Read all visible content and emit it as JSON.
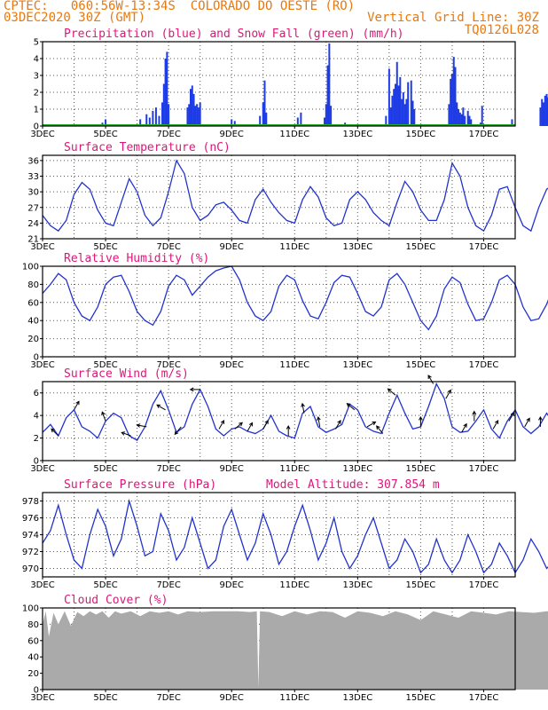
{
  "header": {
    "line1": "CPTEC:   060:56W-13:34S  COLORADO DO OESTE (RO)",
    "line2_left": "03DEC2020 30Z (GMT)",
    "line2_right": "Vertical Grid Line: 30Z",
    "line3_right": "TQ0126L028"
  },
  "chart_data": [
    {
      "type": "bar",
      "title": "Precipitation (blue) and Snow Fall (green) (mm/h)",
      "ylim": [
        0,
        5
      ],
      "yticks": [
        0,
        1,
        2,
        3,
        4,
        5
      ],
      "x_start": "03DEC",
      "x_end": "18DEC",
      "xticks": [
        "3DEC",
        "5DEC",
        "7DEC",
        "9DEC",
        "11DEC",
        "13DEC",
        "15DEC",
        "17DEC"
      ],
      "colors": {
        "precip": "#1e3ce6",
        "snow": "#22aa22"
      },
      "series": [
        {
          "name": "Precipitation",
          "values": [
            [
              1.9,
              0.2
            ],
            [
              2.0,
              0.4
            ],
            [
              3.1,
              0.4
            ],
            [
              3.3,
              0.7
            ],
            [
              3.4,
              0.5
            ],
            [
              3.5,
              0.9
            ],
            [
              3.6,
              1.1
            ],
            [
              3.7,
              0.6
            ],
            [
              3.8,
              1.4
            ],
            [
              3.85,
              2.5
            ],
            [
              3.9,
              4.0
            ],
            [
              3.95,
              4.4
            ],
            [
              4.0,
              1.3
            ],
            [
              4.6,
              1.1
            ],
            [
              4.65,
              1.3
            ],
            [
              4.7,
              2.2
            ],
            [
              4.75,
              2.4
            ],
            [
              4.8,
              1.9
            ],
            [
              4.85,
              1.2
            ],
            [
              4.9,
              1.3
            ],
            [
              4.95,
              1.1
            ],
            [
              5.0,
              1.4
            ],
            [
              6.0,
              0.4
            ],
            [
              6.1,
              0.3
            ],
            [
              6.9,
              0.6
            ],
            [
              7.0,
              1.4
            ],
            [
              7.05,
              2.7
            ],
            [
              7.1,
              0.8
            ],
            [
              8.1,
              0.5
            ],
            [
              8.2,
              0.8
            ],
            [
              8.95,
              0.5
            ],
            [
              9.0,
              1.3
            ],
            [
              9.05,
              3.6
            ],
            [
              9.1,
              4.9
            ],
            [
              9.15,
              1.2
            ],
            [
              9.6,
              0.2
            ],
            [
              10.9,
              0.6
            ],
            [
              11.0,
              3.4
            ],
            [
              11.05,
              1.1
            ],
            [
              11.1,
              1.8
            ],
            [
              11.15,
              2.2
            ],
            [
              11.2,
              2.5
            ],
            [
              11.25,
              3.8
            ],
            [
              11.3,
              2.4
            ],
            [
              11.35,
              2.9
            ],
            [
              11.4,
              1.6
            ],
            [
              11.45,
              2.0
            ],
            [
              11.5,
              1.3
            ],
            [
              11.55,
              1.6
            ],
            [
              11.6,
              2.6
            ],
            [
              11.7,
              2.7
            ],
            [
              11.75,
              1.5
            ],
            [
              11.8,
              1.0
            ],
            [
              12.9,
              1.3
            ],
            [
              12.95,
              2.8
            ],
            [
              13.0,
              3.1
            ],
            [
              13.05,
              4.1
            ],
            [
              13.1,
              3.5
            ],
            [
              13.15,
              1.4
            ],
            [
              13.2,
              1.0
            ],
            [
              13.25,
              0.8
            ],
            [
              13.3,
              0.7
            ],
            [
              13.35,
              1.1
            ],
            [
              13.4,
              0.6
            ],
            [
              13.5,
              0.9
            ],
            [
              13.55,
              0.6
            ],
            [
              13.6,
              0.4
            ],
            [
              13.9,
              0.2
            ],
            [
              13.95,
              1.2
            ],
            [
              14.9,
              0.4
            ],
            [
              15.8,
              1.1
            ],
            [
              15.85,
              1.6
            ],
            [
              15.9,
              1.4
            ],
            [
              15.95,
              1.8
            ],
            [
              16.0,
              1.9
            ],
            [
              16.05,
              1.7
            ]
          ]
        },
        {
          "name": "Snow Fall",
          "values": []
        }
      ]
    },
    {
      "type": "line",
      "title": "Surface Temperature (nC)",
      "ylim": [
        21,
        37
      ],
      "yticks": [
        21,
        24,
        27,
        30,
        33,
        36
      ],
      "xticks": [
        "3DEC",
        "5DEC",
        "7DEC",
        "9DEC",
        "11DEC",
        "13DEC",
        "15DEC",
        "17DEC"
      ],
      "color": "#2233cc",
      "x": [
        0,
        0.25,
        0.5,
        0.75,
        1,
        1.25,
        1.5,
        1.75,
        2,
        2.25,
        2.5,
        2.75,
        3,
        3.25,
        3.5,
        3.75,
        4,
        4.25,
        4.5,
        4.75,
        5,
        5.25,
        5.5,
        5.75,
        6,
        6.25,
        6.5,
        6.75,
        7,
        7.25,
        7.5,
        7.75,
        8,
        8.25,
        8.5,
        8.75,
        9,
        9.25,
        9.5,
        9.75,
        10,
        10.25,
        10.5,
        10.75,
        11,
        11.25,
        11.5,
        11.75,
        12,
        12.25,
        12.5,
        12.75,
        13,
        13.25,
        13.5,
        13.75,
        14,
        14.25,
        14.5,
        14.75,
        15,
        15.25,
        15.5,
        15.75,
        16,
        16.25,
        16.5,
        16.75,
        17
      ],
      "y": [
        25.5,
        23.5,
        22.5,
        24.5,
        29.5,
        31.8,
        30.5,
        26.5,
        24,
        23.5,
        28,
        32.5,
        30,
        25.5,
        23.5,
        25,
        30,
        36,
        33.5,
        27,
        24.5,
        25.5,
        27.5,
        28,
        26.5,
        24.5,
        24,
        28.5,
        30.5,
        28,
        26,
        24.5,
        24,
        28.5,
        31,
        29,
        25,
        23.5,
        24,
        28.5,
        30,
        28.5,
        26,
        24.5,
        23.5,
        28,
        32,
        30,
        26.5,
        24.5,
        24.5,
        28.5,
        35.5,
        33,
        27,
        23.5,
        22.5,
        25.5,
        30.5,
        31,
        27,
        23.5,
        22.5,
        27,
        30.5,
        31.5,
        28.5,
        24.5,
        26.5
      ]
    },
    {
      "type": "line",
      "title": "Relative Humidity (%)",
      "ylim": [
        0,
        100
      ],
      "yticks": [
        0,
        20,
        40,
        60,
        80,
        100
      ],
      "xticks": [
        "3DEC",
        "5DEC",
        "7DEC",
        "9DEC",
        "11DEC",
        "13DEC",
        "15DEC",
        "17DEC"
      ],
      "color": "#2233cc",
      "x": [
        0,
        0.25,
        0.5,
        0.75,
        1,
        1.25,
        1.5,
        1.75,
        2,
        2.25,
        2.5,
        2.75,
        3,
        3.25,
        3.5,
        3.75,
        4,
        4.25,
        4.5,
        4.75,
        5,
        5.25,
        5.5,
        5.75,
        6,
        6.25,
        6.5,
        6.75,
        7,
        7.25,
        7.5,
        7.75,
        8,
        8.25,
        8.5,
        8.75,
        9,
        9.25,
        9.5,
        9.75,
        10,
        10.25,
        10.5,
        10.75,
        11,
        11.25,
        11.5,
        11.75,
        12,
        12.25,
        12.5,
        12.75,
        13,
        13.25,
        13.5,
        13.75,
        14,
        14.25,
        14.5,
        14.75,
        15,
        15.25,
        15.5,
        15.75,
        16,
        16.25,
        16.5,
        16.75,
        17
      ],
      "y": [
        70,
        80,
        92,
        85,
        60,
        45,
        40,
        55,
        80,
        88,
        90,
        72,
        50,
        40,
        35,
        50,
        78,
        90,
        85,
        68,
        78,
        88,
        95,
        98,
        100,
        85,
        60,
        45,
        40,
        50,
        78,
        90,
        85,
        62,
        45,
        42,
        60,
        82,
        90,
        88,
        70,
        50,
        45,
        55,
        85,
        92,
        80,
        60,
        40,
        30,
        45,
        75,
        88,
        82,
        58,
        40,
        42,
        60,
        85,
        90,
        80,
        55,
        40,
        42,
        58,
        80,
        88,
        82,
        90
      ]
    },
    {
      "type": "line",
      "title": "Surface Wind (m/s)",
      "ylim": [
        0,
        7
      ],
      "yticks": [
        0,
        2,
        4,
        6
      ],
      "xticks": [
        "3DEC",
        "5DEC",
        "7DEC",
        "9DEC",
        "11DEC",
        "13DEC",
        "15DEC",
        "17DEC"
      ],
      "color": "#2233cc",
      "x": [
        0,
        0.25,
        0.5,
        0.75,
        1,
        1.25,
        1.5,
        1.75,
        2,
        2.25,
        2.5,
        2.75,
        3,
        3.25,
        3.5,
        3.75,
        4,
        4.25,
        4.5,
        4.75,
        5,
        5.25,
        5.5,
        5.75,
        6,
        6.25,
        6.5,
        6.75,
        7,
        7.25,
        7.5,
        7.75,
        8,
        8.25,
        8.5,
        8.75,
        9,
        9.25,
        9.5,
        9.75,
        10,
        10.25,
        10.5,
        10.75,
        11,
        11.25,
        11.5,
        11.75,
        12,
        12.25,
        12.5,
        12.75,
        13,
        13.25,
        13.5,
        13.75,
        14,
        14.25,
        14.5,
        14.75,
        15,
        15.25,
        15.5,
        15.75,
        16,
        16.25,
        16.5,
        16.75,
        17
      ],
      "y": [
        2.5,
        3.2,
        2.2,
        3.8,
        4.5,
        3.0,
        2.6,
        2.0,
        3.5,
        4.2,
        3.8,
        2.2,
        1.8,
        3.0,
        5.0,
        6.2,
        4.5,
        2.5,
        3.0,
        5.0,
        6.3,
        4.8,
        2.8,
        2.2,
        2.8,
        3.0,
        2.6,
        2.4,
        2.8,
        4.0,
        2.6,
        2.2,
        2.0,
        4.2,
        4.8,
        3.0,
        2.5,
        2.8,
        3.2,
        5.0,
        4.5,
        3.0,
        2.6,
        2.4,
        4.2,
        5.8,
        4.2,
        2.8,
        3.0,
        4.8,
        6.8,
        5.5,
        3.0,
        2.5,
        2.6,
        3.5,
        4.5,
        2.8,
        2.0,
        3.5,
        4.5,
        3.0,
        2.4,
        3.0,
        4.2,
        3.2,
        2.6,
        3.5,
        2.2
      ],
      "arrows": [
        [
          0.5,
          225
        ],
        [
          1.0,
          300
        ],
        [
          2.0,
          250
        ],
        [
          2.8,
          200
        ],
        [
          3.3,
          190
        ],
        [
          3.9,
          210
        ],
        [
          4.4,
          130
        ],
        [
          5.0,
          180
        ],
        [
          5.6,
          300
        ],
        [
          6.1,
          320
        ],
        [
          6.5,
          300
        ],
        [
          7.0,
          300
        ],
        [
          7.8,
          270
        ],
        [
          8.3,
          260
        ],
        [
          8.8,
          260
        ],
        [
          9.3,
          300
        ],
        [
          9.9,
          220
        ],
        [
          10.3,
          330
        ],
        [
          10.8,
          230
        ],
        [
          11.2,
          220
        ],
        [
          12.0,
          270
        ],
        [
          12.4,
          240
        ],
        [
          12.8,
          300
        ],
        [
          13.3,
          300
        ],
        [
          13.7,
          270
        ],
        [
          14.3,
          300
        ],
        [
          14.8,
          300
        ],
        [
          15.3,
          300
        ],
        [
          15.8,
          270
        ],
        [
          16.3,
          260
        ]
      ]
    },
    {
      "type": "line",
      "title": "Surface Pressure (hPa)",
      "subtitle": "Model Altitude: 307.854  m",
      "ylim": [
        969,
        979
      ],
      "yticks": [
        970,
        972,
        974,
        976,
        978
      ],
      "xticks": [
        "3DEC",
        "5DEC",
        "7DEC",
        "9DEC",
        "11DEC",
        "13DEC",
        "15DEC",
        "17DEC"
      ],
      "color": "#2233cc",
      "x": [
        0,
        0.25,
        0.5,
        0.75,
        1,
        1.25,
        1.5,
        1.75,
        2,
        2.25,
        2.5,
        2.75,
        3,
        3.25,
        3.5,
        3.75,
        4,
        4.25,
        4.5,
        4.75,
        5,
        5.25,
        5.5,
        5.75,
        6,
        6.25,
        6.5,
        6.75,
        7,
        7.25,
        7.5,
        7.75,
        8,
        8.25,
        8.5,
        8.75,
        9,
        9.25,
        9.5,
        9.75,
        10,
        10.25,
        10.5,
        10.75,
        11,
        11.25,
        11.5,
        11.75,
        12,
        12.25,
        12.5,
        12.75,
        13,
        13.25,
        13.5,
        13.75,
        14,
        14.25,
        14.5,
        14.75,
        15,
        15.25,
        15.5,
        15.75,
        16,
        16.25,
        16.5,
        16.75,
        17
      ],
      "y": [
        973,
        974.5,
        977.5,
        974,
        971,
        970,
        974,
        977,
        975,
        971.5,
        973.5,
        978,
        975,
        971.5,
        972,
        976.5,
        974.5,
        971,
        972.5,
        976,
        973,
        970,
        971,
        975,
        977,
        974,
        971,
        973,
        976.5,
        974,
        970.5,
        972,
        975,
        977.5,
        974.5,
        971,
        973,
        976,
        972,
        970,
        971.5,
        974,
        976,
        973,
        970,
        971,
        973.5,
        972,
        969.5,
        970.5,
        973.5,
        971,
        969.5,
        971,
        974,
        972,
        969.5,
        970.5,
        973,
        971.5,
        969.5,
        971,
        973.5,
        972,
        970,
        971,
        974,
        972,
        970.5
      ]
    },
    {
      "type": "area",
      "title": "Cloud Cover (%)",
      "ylim": [
        0,
        100
      ],
      "yticks": [
        0,
        20,
        40,
        60,
        80,
        100
      ],
      "xticks": [
        "3DEC",
        "5DEC",
        "7DEC",
        "9DEC",
        "11DEC",
        "13DEC",
        "15DEC",
        "17DEC"
      ],
      "color": "#aaaaaa",
      "x": [
        0,
        0.1,
        0.2,
        0.35,
        0.5,
        0.7,
        0.9,
        1.1,
        1.3,
        1.5,
        1.7,
        1.9,
        2.1,
        2.3,
        2.5,
        2.8,
        3.1,
        3.4,
        3.7,
        4.0,
        4.3,
        4.6,
        5.0,
        5.4,
        5.8,
        6.2,
        6.6,
        6.8,
        6.85,
        6.9,
        7.2,
        7.6,
        8.0,
        8.4,
        8.8,
        9.2,
        9.6,
        10.0,
        10.4,
        10.8,
        11.2,
        11.6,
        12.0,
        12.4,
        12.8,
        13.2,
        13.6,
        14.0,
        14.4,
        14.8,
        15.2,
        15.6,
        16.0,
        16.4,
        16.8,
        17
      ],
      "y": [
        80,
        96,
        65,
        94,
        80,
        96,
        78,
        95,
        90,
        96,
        92,
        96,
        88,
        96,
        93,
        96,
        90,
        96,
        94,
        96,
        92,
        96,
        95,
        96,
        96,
        96,
        95,
        96,
        2,
        96,
        95,
        90,
        96,
        92,
        96,
        95,
        88,
        96,
        94,
        90,
        96,
        92,
        85,
        96,
        92,
        88,
        96,
        94,
        92,
        96,
        95,
        94,
        96,
        95,
        96,
        96
      ]
    }
  ]
}
